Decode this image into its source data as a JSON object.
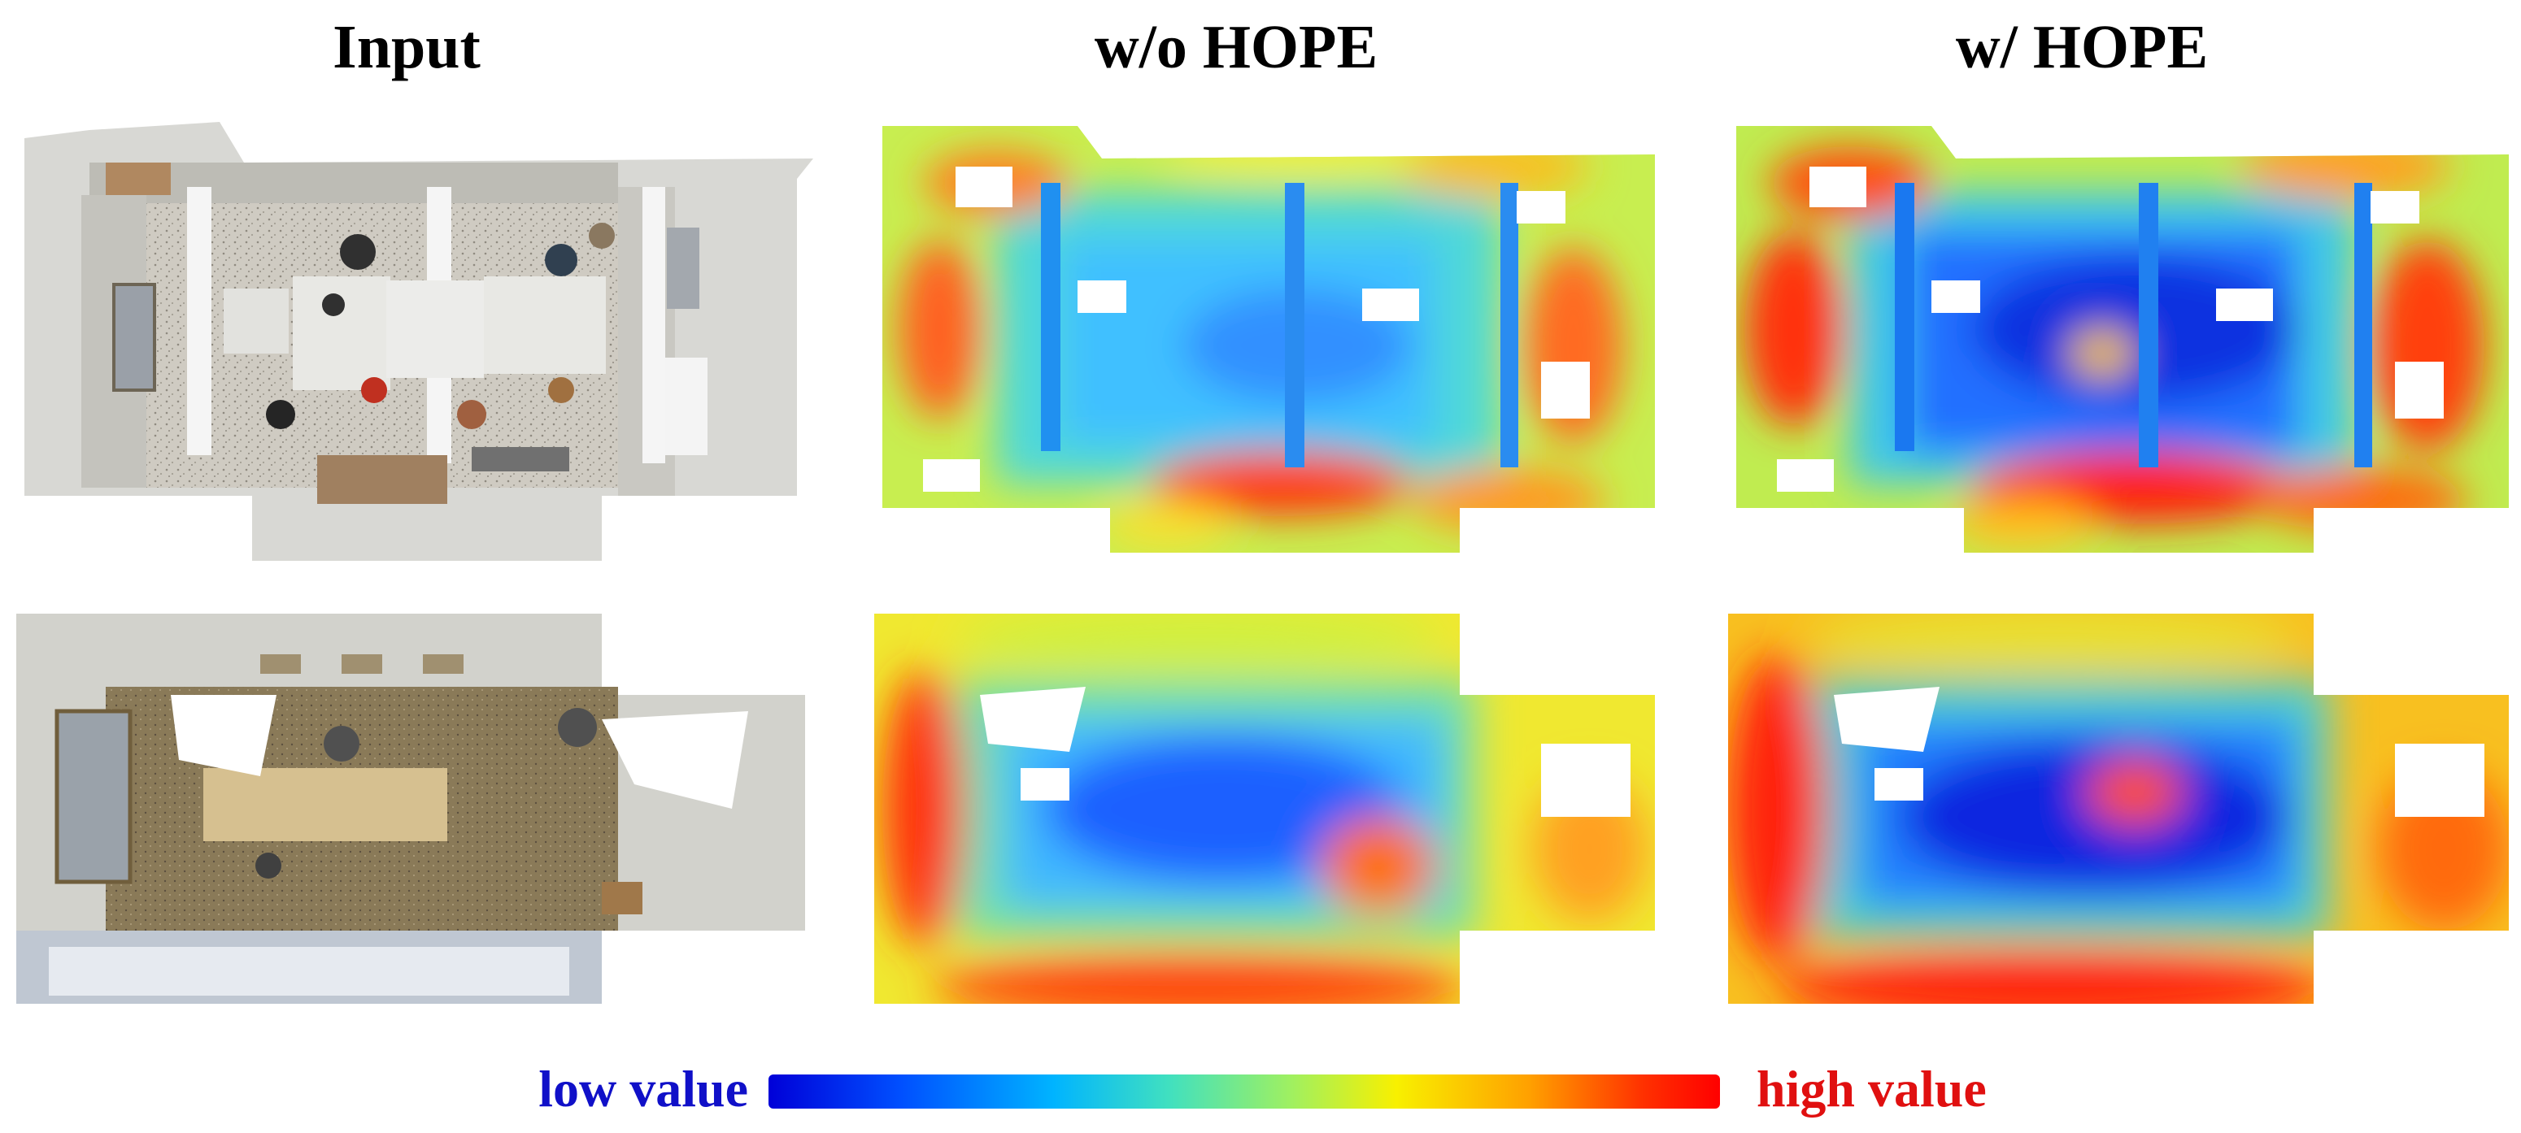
{
  "columns": {
    "input": "Input",
    "without": "w/o HOPE",
    "with": "w/ HOPE"
  },
  "legend": {
    "low": "low value",
    "high": "high value",
    "colors": [
      "#0000d8",
      "#00b4ff",
      "#a0f060",
      "#f8f000",
      "#ffa000",
      "#ff0000"
    ]
  },
  "panels": [
    {
      "row": 1,
      "column": "input",
      "content": "point-cloud-room"
    },
    {
      "row": 1,
      "column": "without",
      "content": "heatmap"
    },
    {
      "row": 1,
      "column": "with",
      "content": "heatmap"
    },
    {
      "row": 2,
      "column": "input",
      "content": "point-cloud-room"
    },
    {
      "row": 2,
      "column": "without",
      "content": "heatmap"
    },
    {
      "row": 2,
      "column": "with",
      "content": "heatmap"
    }
  ]
}
